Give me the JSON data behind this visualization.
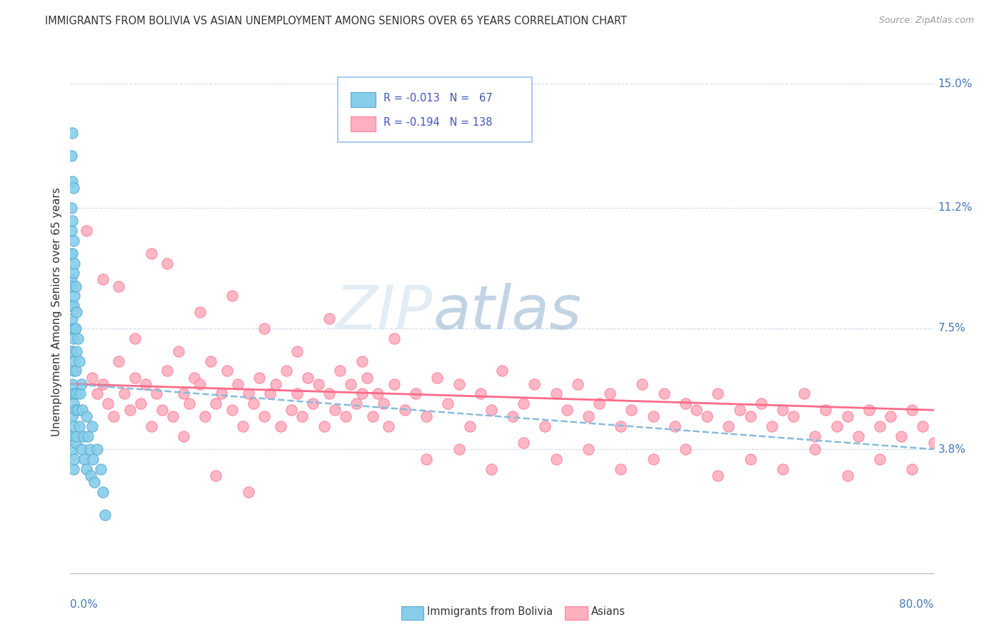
{
  "title": "IMMIGRANTS FROM BOLIVIA VS ASIAN UNEMPLOYMENT AMONG SENIORS OVER 65 YEARS CORRELATION CHART",
  "source": "Source: ZipAtlas.com",
  "ylabel": "Unemployment Among Seniors over 65 years",
  "xlim": [
    0.0,
    0.8
  ],
  "ylim": [
    0.0,
    0.16
  ],
  "ytick_positions": [
    0.038,
    0.075,
    0.112,
    0.15
  ],
  "ytick_labels": [
    "3.8%",
    "7.5%",
    "11.2%",
    "15.0%"
  ],
  "blue_trend": [
    0.058,
    0.038
  ],
  "pink_trend": [
    0.058,
    0.05
  ],
  "blue_color": "#87CEEB",
  "blue_edge": "#5AAAD0",
  "pink_color": "#FFB0C0",
  "pink_edge": "#FF8099",
  "pink_trend_color": "#FF6B8A",
  "blue_trend_color": "#88BBDD",
  "watermark_color": "#C8D8E8",
  "grid_color": "#CCDDEE",
  "blue_scatter_x": [
    0.001,
    0.001,
    0.001,
    0.001,
    0.001,
    0.001,
    0.001,
    0.001,
    0.001,
    0.001,
    0.002,
    0.002,
    0.002,
    0.002,
    0.002,
    0.002,
    0.002,
    0.002,
    0.002,
    0.002,
    0.003,
    0.003,
    0.003,
    0.003,
    0.003,
    0.003,
    0.003,
    0.003,
    0.003,
    0.004,
    0.004,
    0.004,
    0.004,
    0.004,
    0.004,
    0.004,
    0.005,
    0.005,
    0.005,
    0.005,
    0.005,
    0.006,
    0.006,
    0.006,
    0.006,
    0.007,
    0.007,
    0.008,
    0.008,
    0.009,
    0.01,
    0.01,
    0.011,
    0.012,
    0.013,
    0.015,
    0.015,
    0.016,
    0.018,
    0.019,
    0.02,
    0.021,
    0.022,
    0.025,
    0.028,
    0.03,
    0.032
  ],
  "blue_scatter_y": [
    0.128,
    0.112,
    0.105,
    0.098,
    0.09,
    0.082,
    0.075,
    0.068,
    0.055,
    0.042,
    0.135,
    0.12,
    0.108,
    0.098,
    0.088,
    0.078,
    0.068,
    0.058,
    0.048,
    0.038,
    0.118,
    0.102,
    0.092,
    0.082,
    0.072,
    0.062,
    0.052,
    0.042,
    0.032,
    0.095,
    0.085,
    0.075,
    0.065,
    0.055,
    0.045,
    0.035,
    0.088,
    0.075,
    0.062,
    0.05,
    0.04,
    0.08,
    0.068,
    0.055,
    0.042,
    0.072,
    0.05,
    0.065,
    0.045,
    0.055,
    0.058,
    0.038,
    0.05,
    0.042,
    0.035,
    0.048,
    0.032,
    0.042,
    0.038,
    0.03,
    0.045,
    0.035,
    0.028,
    0.038,
    0.032,
    0.025,
    0.018
  ],
  "pink_scatter_x": [
    0.02,
    0.025,
    0.03,
    0.035,
    0.04,
    0.045,
    0.05,
    0.055,
    0.06,
    0.065,
    0.07,
    0.075,
    0.08,
    0.085,
    0.09,
    0.095,
    0.1,
    0.105,
    0.11,
    0.115,
    0.12,
    0.125,
    0.13,
    0.135,
    0.14,
    0.145,
    0.15,
    0.155,
    0.16,
    0.165,
    0.17,
    0.175,
    0.18,
    0.185,
    0.19,
    0.195,
    0.2,
    0.205,
    0.21,
    0.215,
    0.22,
    0.225,
    0.23,
    0.235,
    0.24,
    0.245,
    0.25,
    0.255,
    0.26,
    0.265,
    0.27,
    0.275,
    0.28,
    0.285,
    0.29,
    0.295,
    0.3,
    0.31,
    0.32,
    0.33,
    0.34,
    0.35,
    0.36,
    0.37,
    0.38,
    0.39,
    0.4,
    0.41,
    0.42,
    0.43,
    0.44,
    0.45,
    0.46,
    0.47,
    0.48,
    0.49,
    0.5,
    0.51,
    0.52,
    0.53,
    0.54,
    0.55,
    0.56,
    0.57,
    0.58,
    0.59,
    0.6,
    0.61,
    0.62,
    0.63,
    0.64,
    0.65,
    0.66,
    0.67,
    0.68,
    0.69,
    0.7,
    0.71,
    0.72,
    0.73,
    0.74,
    0.75,
    0.76,
    0.77,
    0.78,
    0.79,
    0.8,
    0.03,
    0.06,
    0.09,
    0.12,
    0.15,
    0.18,
    0.21,
    0.24,
    0.27,
    0.3,
    0.33,
    0.36,
    0.39,
    0.42,
    0.45,
    0.48,
    0.51,
    0.54,
    0.57,
    0.6,
    0.63,
    0.66,
    0.69,
    0.72,
    0.75,
    0.78,
    0.015,
    0.045,
    0.075,
    0.105,
    0.135,
    0.165
  ],
  "pink_scatter_y": [
    0.06,
    0.055,
    0.058,
    0.052,
    0.048,
    0.065,
    0.055,
    0.05,
    0.06,
    0.052,
    0.058,
    0.045,
    0.055,
    0.05,
    0.062,
    0.048,
    0.068,
    0.055,
    0.052,
    0.06,
    0.058,
    0.048,
    0.065,
    0.052,
    0.055,
    0.062,
    0.05,
    0.058,
    0.045,
    0.055,
    0.052,
    0.06,
    0.048,
    0.055,
    0.058,
    0.045,
    0.062,
    0.05,
    0.055,
    0.048,
    0.06,
    0.052,
    0.058,
    0.045,
    0.055,
    0.05,
    0.062,
    0.048,
    0.058,
    0.052,
    0.055,
    0.06,
    0.048,
    0.055,
    0.052,
    0.045,
    0.058,
    0.05,
    0.055,
    0.048,
    0.06,
    0.052,
    0.058,
    0.045,
    0.055,
    0.05,
    0.062,
    0.048,
    0.052,
    0.058,
    0.045,
    0.055,
    0.05,
    0.058,
    0.048,
    0.052,
    0.055,
    0.045,
    0.05,
    0.058,
    0.048,
    0.055,
    0.045,
    0.052,
    0.05,
    0.048,
    0.055,
    0.045,
    0.05,
    0.048,
    0.052,
    0.045,
    0.05,
    0.048,
    0.055,
    0.042,
    0.05,
    0.045,
    0.048,
    0.042,
    0.05,
    0.045,
    0.048,
    0.042,
    0.05,
    0.045,
    0.04,
    0.09,
    0.072,
    0.095,
    0.08,
    0.085,
    0.075,
    0.068,
    0.078,
    0.065,
    0.072,
    0.035,
    0.038,
    0.032,
    0.04,
    0.035,
    0.038,
    0.032,
    0.035,
    0.038,
    0.03,
    0.035,
    0.032,
    0.038,
    0.03,
    0.035,
    0.032,
    0.105,
    0.088,
    0.098,
    0.042,
    0.03,
    0.025
  ]
}
